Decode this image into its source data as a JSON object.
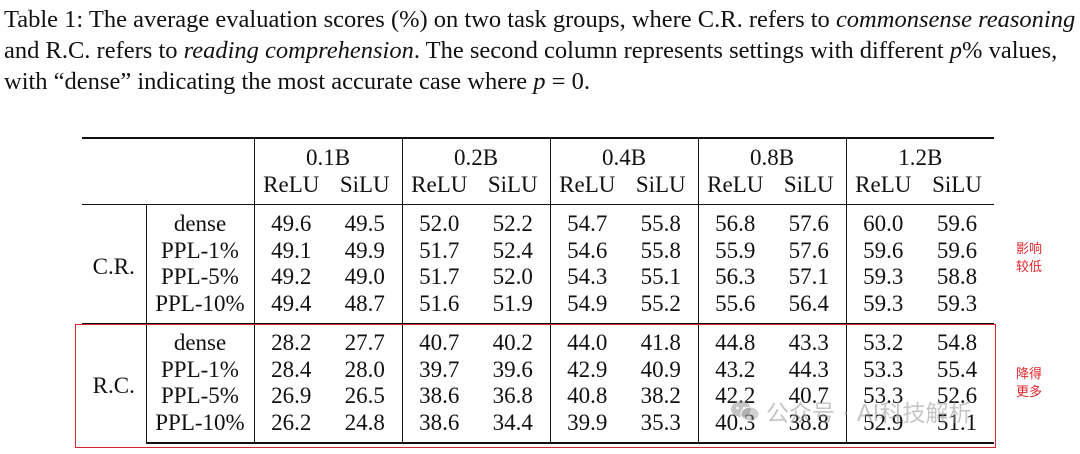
{
  "caption": {
    "lead": "Table 1: The average evaluation scores (%) on two task groups, where C.R. refers to ",
    "cr_term": "commonsense reasoning",
    "mid": " and R.C. refers to ",
    "rc_term": "reading comprehension",
    "tail1": ". The second column represents settings with different ",
    "p_symbol": "p",
    "tail2": "% values, with “dense” indicating the most accurate case where ",
    "p_expr": "p",
    "eq": " = 0",
    "end": "."
  },
  "table": {
    "sizes": [
      "0.1B",
      "0.2B",
      "0.4B",
      "0.8B",
      "1.2B"
    ],
    "activations": [
      "ReLU",
      "SiLU"
    ],
    "groups": [
      {
        "label": "C.R.",
        "rows": [
          {
            "setting": "dense",
            "values": [
              "49.6",
              "49.5",
              "52.0",
              "52.2",
              "54.7",
              "55.8",
              "56.8",
              "57.6",
              "60.0",
              "59.6"
            ]
          },
          {
            "setting": "PPL-1%",
            "values": [
              "49.1",
              "49.9",
              "51.7",
              "52.4",
              "54.6",
              "55.8",
              "55.9",
              "57.6",
              "59.6",
              "59.6"
            ]
          },
          {
            "setting": "PPL-5%",
            "values": [
              "49.2",
              "49.0",
              "51.7",
              "52.0",
              "54.3",
              "55.1",
              "56.3",
              "57.1",
              "59.3",
              "58.8"
            ]
          },
          {
            "setting": "PPL-10%",
            "values": [
              "49.4",
              "48.7",
              "51.6",
              "51.9",
              "54.9",
              "55.2",
              "55.6",
              "56.4",
              "59.3",
              "59.3"
            ]
          }
        ]
      },
      {
        "label": "R.C.",
        "rows": [
          {
            "setting": "dense",
            "values": [
              "28.2",
              "27.7",
              "40.7",
              "40.2",
              "44.0",
              "41.8",
              "44.8",
              "43.3",
              "53.2",
              "54.8"
            ]
          },
          {
            "setting": "PPL-1%",
            "values": [
              "28.4",
              "28.0",
              "39.7",
              "39.6",
              "42.9",
              "40.9",
              "43.2",
              "44.3",
              "53.3",
              "55.4"
            ]
          },
          {
            "setting": "PPL-5%",
            "values": [
              "26.9",
              "26.5",
              "38.6",
              "36.8",
              "40.8",
              "38.2",
              "42.2",
              "40.7",
              "53.3",
              "52.6"
            ]
          },
          {
            "setting": "PPL-10%",
            "values": [
              "26.2",
              "24.8",
              "38.6",
              "34.4",
              "39.9",
              "35.3",
              "40.3",
              "38.8",
              "52.9",
              "51.1"
            ]
          }
        ]
      }
    ]
  },
  "annotations": {
    "cr_note_line1": "影响",
    "cr_note_line2": "较低",
    "rc_note_line1": "降得",
    "rc_note_line2": "更多",
    "highlight_color": "#d9262c"
  },
  "watermark": {
    "text": "公众号 · AI科技解析",
    "icon": "wechat-icon"
  }
}
